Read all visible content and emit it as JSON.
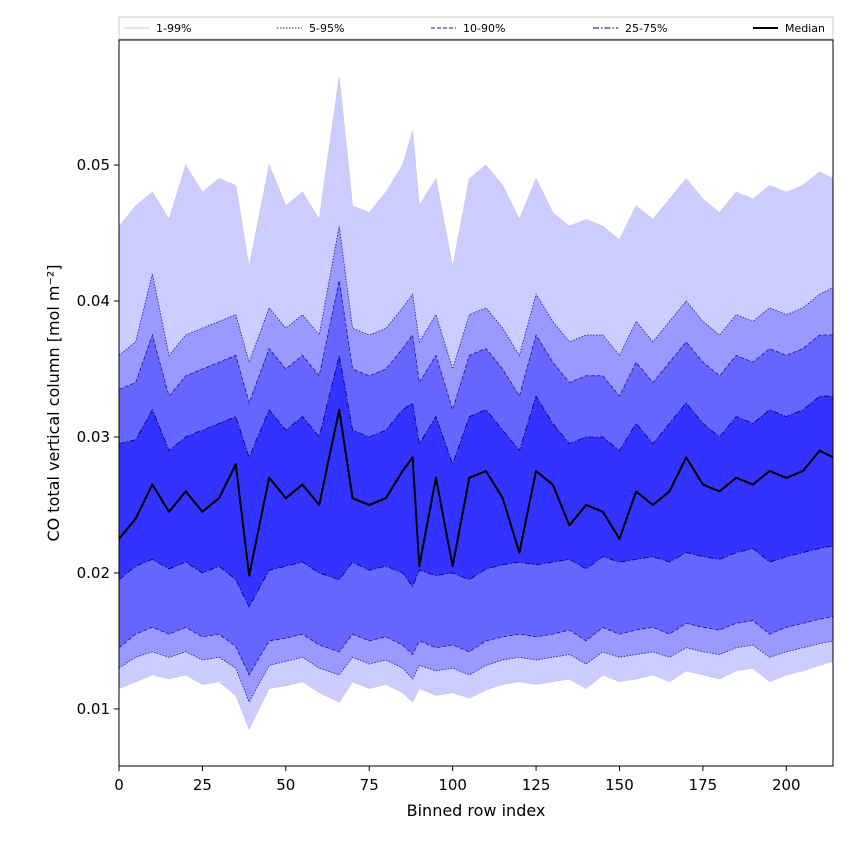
{
  "chart_data": {
    "type": "area",
    "title": "",
    "xlabel": "Binned row index",
    "ylabel": "CO total vertical column [mol m⁻²]",
    "xlim": [
      0,
      214
    ],
    "ylim": [
      0.0058,
      0.0592
    ],
    "x_ticks": [
      0,
      25,
      50,
      75,
      100,
      125,
      150,
      175,
      200
    ],
    "x_tick_labels": [
      "0",
      "25",
      "50",
      "75",
      "100",
      "125",
      "150",
      "175",
      "200"
    ],
    "y_ticks": [
      0.01,
      0.02,
      0.03,
      0.04,
      0.05
    ],
    "y_tick_labels": [
      "0.01",
      "0.02",
      "0.03",
      "0.04",
      "0.05"
    ],
    "grid": false,
    "legend_position": "top, horizontal above plot",
    "x": [
      0,
      5,
      10,
      15,
      20,
      25,
      30,
      35,
      39,
      45,
      50,
      55,
      60,
      66,
      70,
      75,
      80,
      85,
      88,
      90,
      95,
      100,
      105,
      110,
      115,
      120,
      125,
      130,
      135,
      140,
      145,
      150,
      155,
      160,
      165,
      170,
      175,
      180,
      185,
      190,
      195,
      200,
      205,
      210,
      214
    ],
    "series": [
      {
        "name": "1-99%",
        "color": "#ccccff",
        "line_color": "#c8c8ee",
        "line_style": "solid",
        "lower": [
          0.0115,
          0.012,
          0.0125,
          0.0122,
          0.0125,
          0.0118,
          0.012,
          0.011,
          0.0085,
          0.0115,
          0.0117,
          0.012,
          0.0112,
          0.0105,
          0.012,
          0.0115,
          0.0118,
          0.0112,
          0.0105,
          0.0115,
          0.011,
          0.0112,
          0.0108,
          0.0114,
          0.0118,
          0.012,
          0.0118,
          0.012,
          0.0122,
          0.0115,
          0.0125,
          0.012,
          0.0122,
          0.0125,
          0.012,
          0.0128,
          0.0125,
          0.0122,
          0.0128,
          0.013,
          0.012,
          0.0125,
          0.0128,
          0.0132,
          0.0135
        ],
        "upper": [
          0.0455,
          0.047,
          0.048,
          0.046,
          0.05,
          0.048,
          0.049,
          0.0485,
          0.0425,
          0.05,
          0.047,
          0.048,
          0.046,
          0.0565,
          0.047,
          0.0465,
          0.048,
          0.05,
          0.0525,
          0.047,
          0.049,
          0.0425,
          0.049,
          0.05,
          0.0485,
          0.046,
          0.049,
          0.0465,
          0.0455,
          0.046,
          0.0455,
          0.0445,
          0.047,
          0.046,
          0.0475,
          0.049,
          0.0475,
          0.0465,
          0.048,
          0.0475,
          0.0485,
          0.048,
          0.0485,
          0.0495,
          0.049
        ]
      },
      {
        "name": "5-95%",
        "color": "#9999ff",
        "line_color": "#1a1aa0",
        "line_style": "dotted",
        "lower": [
          0.013,
          0.0138,
          0.0142,
          0.0138,
          0.0142,
          0.0136,
          0.0138,
          0.013,
          0.0105,
          0.0132,
          0.0135,
          0.0138,
          0.013,
          0.0125,
          0.0138,
          0.0133,
          0.0136,
          0.013,
          0.0122,
          0.0132,
          0.0128,
          0.013,
          0.0125,
          0.0132,
          0.0136,
          0.0138,
          0.0136,
          0.0138,
          0.014,
          0.0133,
          0.0142,
          0.0138,
          0.014,
          0.0142,
          0.0138,
          0.0145,
          0.0142,
          0.014,
          0.0145,
          0.0147,
          0.0138,
          0.0142,
          0.0145,
          0.0148,
          0.015
        ],
        "upper": [
          0.036,
          0.037,
          0.042,
          0.036,
          0.0375,
          0.038,
          0.0385,
          0.039,
          0.0355,
          0.0395,
          0.038,
          0.039,
          0.0375,
          0.0455,
          0.038,
          0.0375,
          0.038,
          0.0395,
          0.0405,
          0.037,
          0.039,
          0.035,
          0.039,
          0.0395,
          0.038,
          0.036,
          0.0405,
          0.0385,
          0.037,
          0.0375,
          0.0375,
          0.036,
          0.0385,
          0.037,
          0.0385,
          0.04,
          0.0385,
          0.0375,
          0.039,
          0.0385,
          0.0395,
          0.039,
          0.0395,
          0.0405,
          0.041
        ]
      },
      {
        "name": "10-90%",
        "color": "#6666ff",
        "line_color": "#1a1a90",
        "line_style": "dashed",
        "lower": [
          0.0145,
          0.0155,
          0.016,
          0.0155,
          0.016,
          0.0153,
          0.0155,
          0.0146,
          0.0125,
          0.015,
          0.0152,
          0.0155,
          0.0147,
          0.0142,
          0.0155,
          0.015,
          0.0153,
          0.0147,
          0.014,
          0.015,
          0.0145,
          0.0147,
          0.0142,
          0.015,
          0.0153,
          0.0155,
          0.0153,
          0.0155,
          0.0158,
          0.015,
          0.016,
          0.0155,
          0.0158,
          0.016,
          0.0155,
          0.0163,
          0.016,
          0.0158,
          0.0163,
          0.0165,
          0.0155,
          0.016,
          0.0163,
          0.0166,
          0.0168
        ],
        "upper": [
          0.0335,
          0.034,
          0.0375,
          0.033,
          0.0345,
          0.035,
          0.0355,
          0.036,
          0.0325,
          0.0365,
          0.035,
          0.036,
          0.0345,
          0.0415,
          0.035,
          0.0345,
          0.035,
          0.0365,
          0.0375,
          0.034,
          0.036,
          0.032,
          0.036,
          0.0365,
          0.035,
          0.033,
          0.0375,
          0.0355,
          0.034,
          0.0345,
          0.0345,
          0.033,
          0.0355,
          0.034,
          0.0355,
          0.037,
          0.0355,
          0.0345,
          0.036,
          0.0355,
          0.0365,
          0.036,
          0.0365,
          0.0375,
          0.0375
        ]
      },
      {
        "name": "25-75%",
        "color": "#3333ff",
        "line_color": "#00006e",
        "line_style": "dashdot",
        "lower": [
          0.0195,
          0.0205,
          0.021,
          0.0203,
          0.0208,
          0.02,
          0.0205,
          0.0195,
          0.0175,
          0.0202,
          0.0205,
          0.0208,
          0.02,
          0.0195,
          0.0208,
          0.0202,
          0.0205,
          0.02,
          0.019,
          0.0202,
          0.0198,
          0.02,
          0.0195,
          0.0203,
          0.0206,
          0.0208,
          0.0206,
          0.0208,
          0.021,
          0.0203,
          0.0212,
          0.0208,
          0.021,
          0.0212,
          0.0208,
          0.0215,
          0.0212,
          0.021,
          0.0215,
          0.0218,
          0.0208,
          0.0212,
          0.0215,
          0.0218,
          0.022
        ],
        "upper": [
          0.0295,
          0.0298,
          0.032,
          0.029,
          0.03,
          0.0305,
          0.031,
          0.0315,
          0.0285,
          0.032,
          0.0305,
          0.0315,
          0.03,
          0.036,
          0.0305,
          0.03,
          0.0305,
          0.032,
          0.0325,
          0.0295,
          0.0315,
          0.028,
          0.0315,
          0.032,
          0.0305,
          0.029,
          0.033,
          0.031,
          0.0295,
          0.03,
          0.03,
          0.029,
          0.031,
          0.0295,
          0.031,
          0.0325,
          0.031,
          0.03,
          0.0315,
          0.031,
          0.032,
          0.0315,
          0.032,
          0.033,
          0.033
        ]
      },
      {
        "name": "Median",
        "color": "#000000",
        "line_style": "solid",
        "values": [
          0.0225,
          0.024,
          0.0265,
          0.0245,
          0.026,
          0.0245,
          0.0255,
          0.028,
          0.0198,
          0.027,
          0.0255,
          0.0265,
          0.025,
          0.032,
          0.0255,
          0.025,
          0.0255,
          0.0275,
          0.0285,
          0.0205,
          0.027,
          0.0205,
          0.027,
          0.0275,
          0.0255,
          0.0215,
          0.0275,
          0.0265,
          0.0235,
          0.025,
          0.0245,
          0.0225,
          0.026,
          0.025,
          0.026,
          0.0285,
          0.0265,
          0.026,
          0.027,
          0.0265,
          0.0275,
          0.027,
          0.0275,
          0.029,
          0.0285
        ]
      }
    ]
  }
}
